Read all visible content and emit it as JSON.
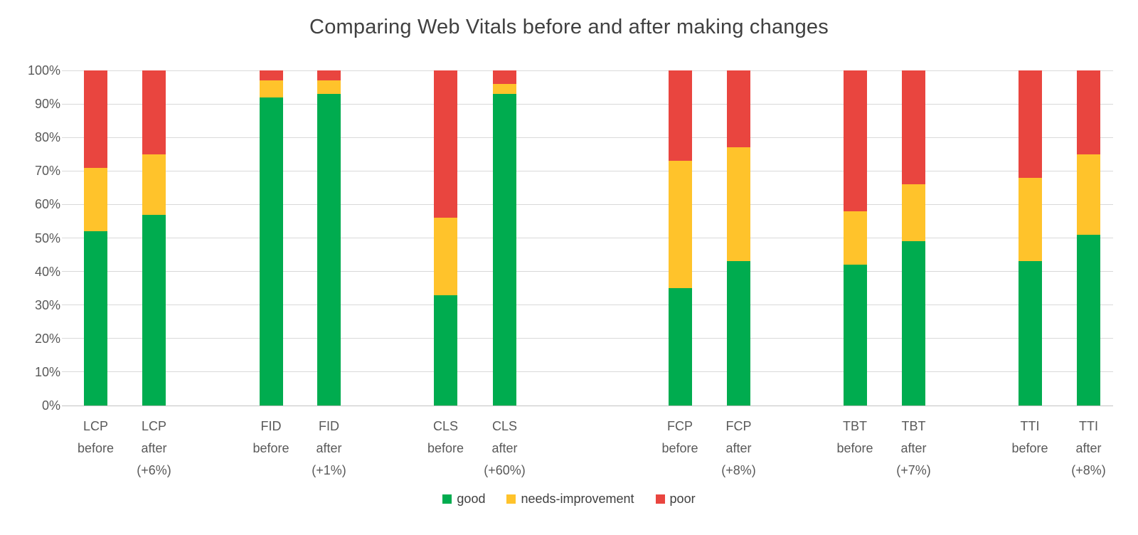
{
  "title": "Comparing Web Vitals before and after making changes",
  "chart_data": {
    "type": "bar",
    "stacked": true,
    "stacked_total": 100,
    "title": "Comparing Web Vitals before and after making changes",
    "xlabel": "",
    "ylabel": "",
    "y_axis": {
      "min": 0,
      "max": 100,
      "step": 10,
      "tick_labels": [
        "0%",
        "10%",
        "20%",
        "30%",
        "40%",
        "50%",
        "60%",
        "70%",
        "80%",
        "90%",
        "100%"
      ],
      "grid": true
    },
    "categories": [
      [
        "LCP",
        "before"
      ],
      [
        "LCP",
        "after",
        "(+6%)"
      ],
      [
        "FID",
        "before"
      ],
      [
        "FID",
        "after",
        "(+1%)"
      ],
      [
        "CLS",
        "before"
      ],
      [
        "CLS",
        "after",
        "(+60%)"
      ],
      [
        "FCP",
        "before"
      ],
      [
        "FCP",
        "after",
        "(+8%)"
      ],
      [
        "TBT",
        "before"
      ],
      [
        "TBT",
        "after",
        "(+7%)"
      ],
      [
        "TTI",
        "before"
      ],
      [
        "TTI",
        "after",
        "(+8%)"
      ]
    ],
    "series": [
      {
        "name": "good",
        "color": "#00AC4F",
        "values": [
          52,
          57,
          92,
          93,
          33,
          93,
          35,
          43,
          42,
          49,
          43,
          51
        ]
      },
      {
        "name": "needs-improvement",
        "color": "#FFC32B",
        "values": [
          19,
          18,
          5,
          4,
          23,
          3,
          38,
          34,
          16,
          17,
          25,
          24
        ]
      },
      {
        "name": "poor",
        "color": "#E9453F",
        "values": [
          29,
          25,
          3,
          3,
          44,
          4,
          27,
          23,
          42,
          34,
          32,
          25
        ]
      }
    ],
    "legend": {
      "position": "bottom",
      "labels": [
        "good",
        "needs-improvement",
        "poor"
      ]
    }
  },
  "colors": {
    "grid": "#D9D9D9",
    "axis_text": "#595959",
    "title_text": "#404040",
    "background": "#FFFFFF"
  }
}
